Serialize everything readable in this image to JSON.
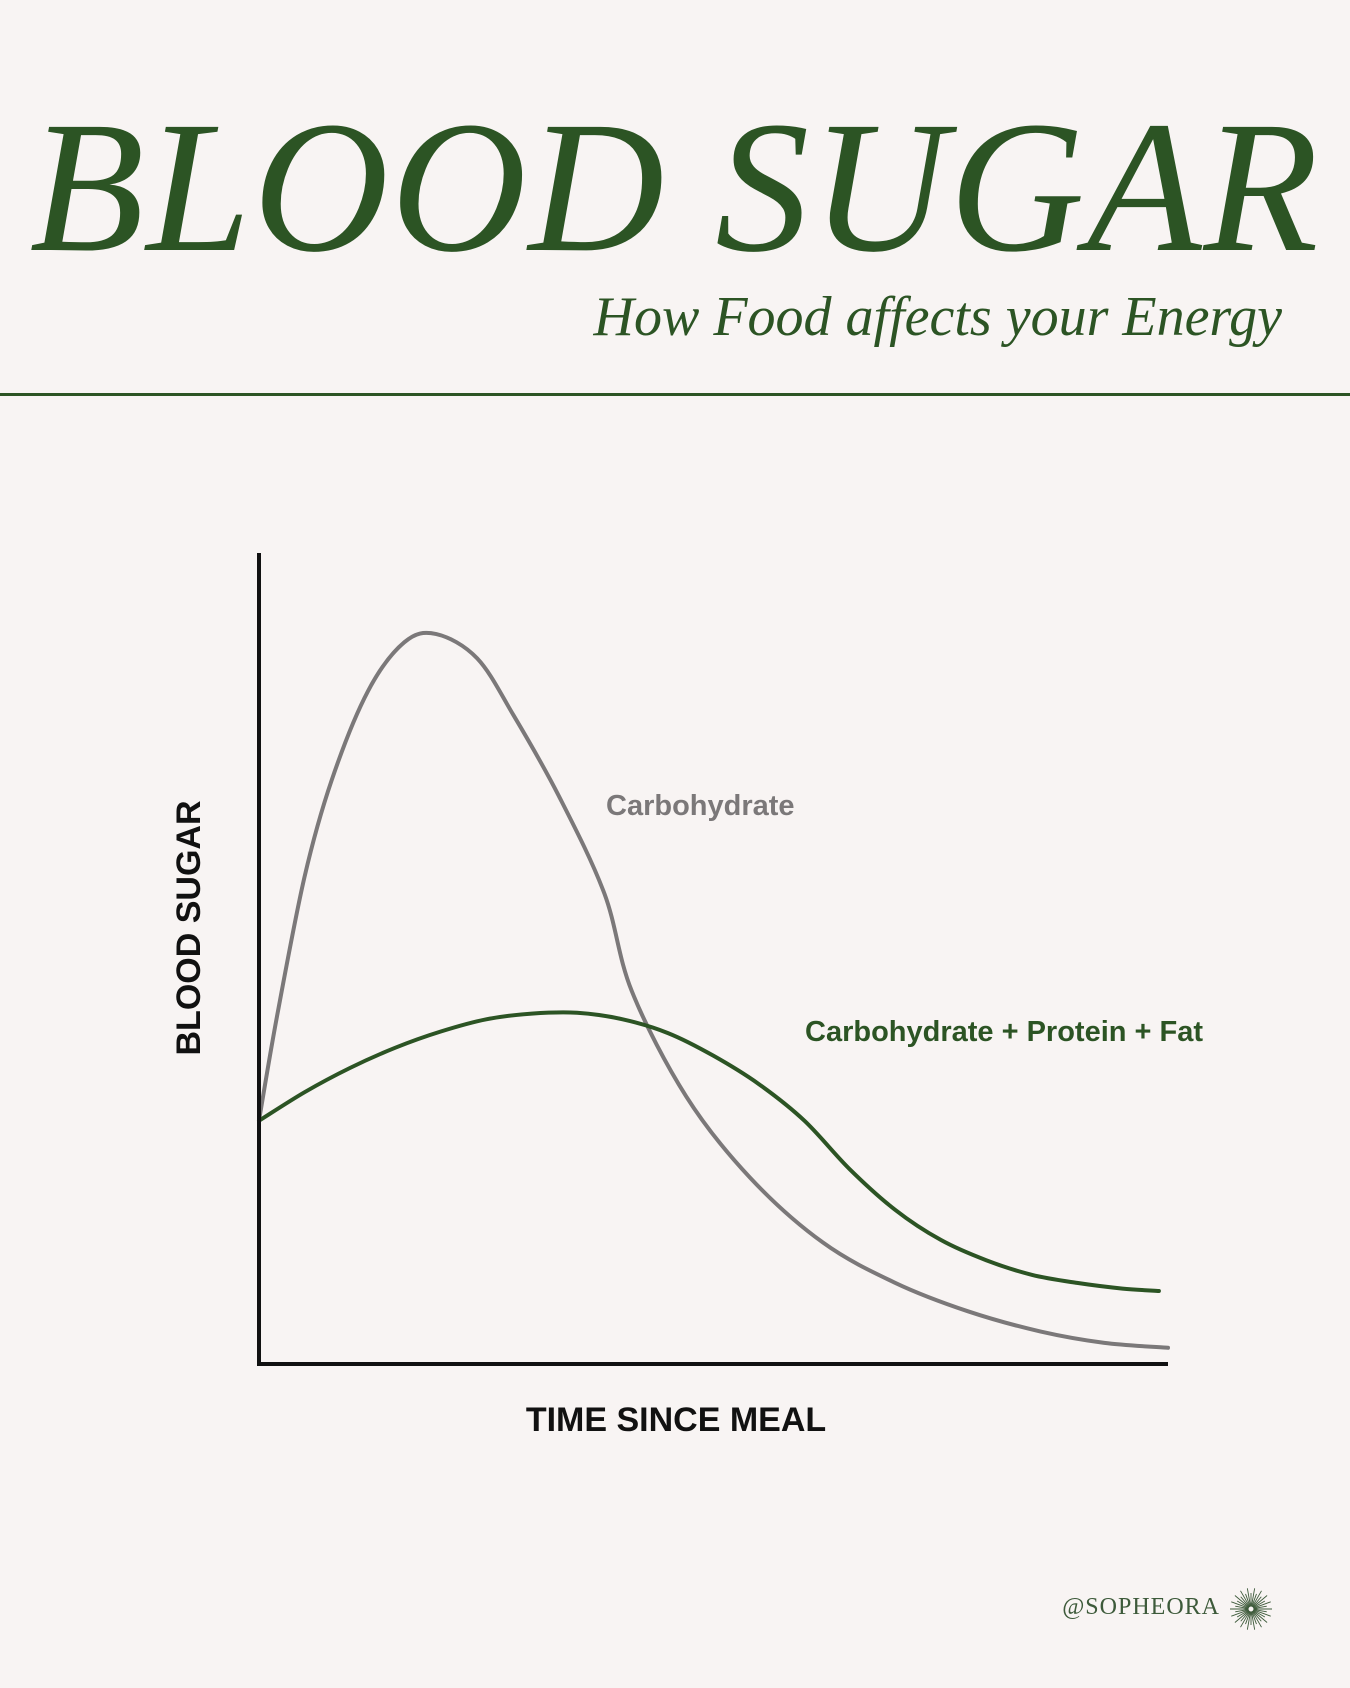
{
  "header": {
    "title": "BLOOD SUGAR",
    "subtitle": "How Food affects your Energy"
  },
  "footer": {
    "handle": "@SOPHEORA",
    "logo_icon": "sunburst-icon"
  },
  "colors": {
    "background": "#f8f4f3",
    "accent_green": "#2c5424",
    "carb_gray": "#7b7879",
    "axis": "#111111"
  },
  "chart_data": {
    "type": "line",
    "xlabel": "TIME SINCE MEAL",
    "ylabel": "BLOOD SUGAR",
    "xlim": [
      0,
      100
    ],
    "ylim": [
      0,
      100
    ],
    "grid": false,
    "series": [
      {
        "name": "Carbohydrate",
        "color": "#7b7879",
        "x": [
          0,
          2,
          5,
          8,
          12,
          16,
          19.5,
          24,
          28,
          33,
          38,
          41,
          47,
          54,
          62,
          70,
          78,
          86,
          93,
          100
        ],
        "y": [
          30,
          43,
          60,
          72,
          83,
          89,
          90,
          87,
          80,
          70,
          58,
          46,
          33,
          23,
          15,
          10,
          6.5,
          4,
          2.6,
          2
        ]
      },
      {
        "name": "Carbohydrate + Protein + Fat",
        "color": "#2c5424",
        "x": [
          0,
          5,
          10,
          15,
          20,
          25,
          30,
          35,
          40,
          45,
          50,
          55,
          60,
          65,
          70,
          75,
          80,
          85,
          90,
          95,
          99
        ],
        "y": [
          30,
          33.5,
          36.5,
          39,
          41,
          42.5,
          43.2,
          43.3,
          42.5,
          40.8,
          38,
          34.5,
          30,
          24,
          19,
          15.3,
          12.8,
          11,
          10,
          9.3,
          9
        ]
      }
    ]
  }
}
